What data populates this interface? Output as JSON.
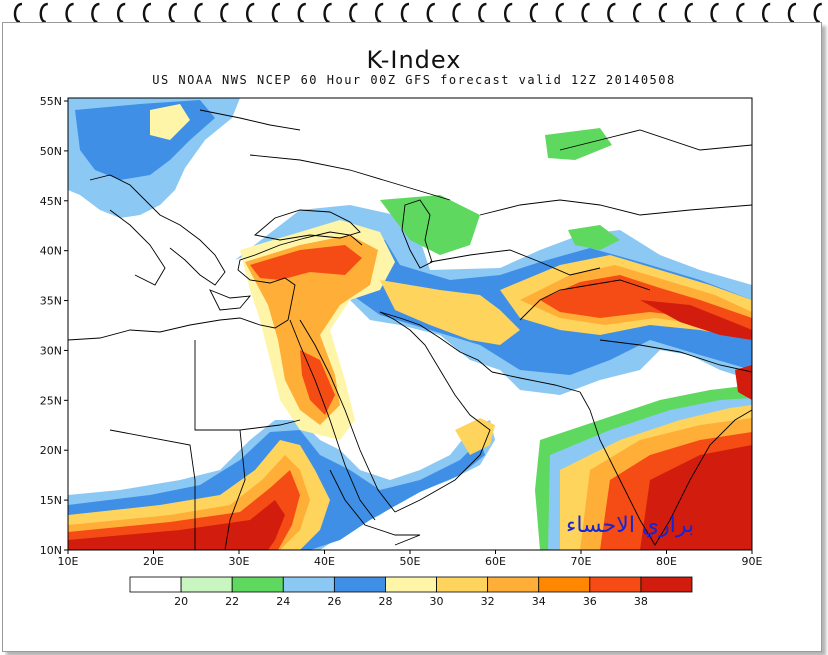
{
  "title": "K-Index",
  "subtitle": "US NOAA NWS NCEP 60 Hour 00Z GFS forecast valid 12Z 20140508",
  "watermark": "براري الاحساء",
  "x_axis": {
    "ticks": [
      "10E",
      "20E",
      "30E",
      "40E",
      "50E",
      "60E",
      "70E",
      "80E",
      "90E"
    ]
  },
  "y_axis": {
    "ticks": [
      "55N",
      "50N",
      "45N",
      "40N",
      "35N",
      "30N",
      "25N",
      "20N",
      "15N",
      "10N"
    ]
  },
  "colorbar": {
    "labels": [
      "20",
      "22",
      "24",
      "26",
      "28",
      "30",
      "32",
      "34",
      "36",
      "38"
    ],
    "colors": [
      "#ffffff",
      "#c8f5c0",
      "#5fd85f",
      "#8cc8f4",
      "#3f8fe6",
      "#fff5a8",
      "#ffd45c",
      "#ffae38",
      "#ff8800",
      "#f54b15",
      "#d21c0e"
    ]
  },
  "map_layers": {
    "land_color": "#ffffff",
    "border_color": "#000000",
    "levels": [
      "20",
      "22",
      "24",
      "26",
      "28",
      "30",
      "32",
      "34",
      "36",
      "38"
    ]
  }
}
